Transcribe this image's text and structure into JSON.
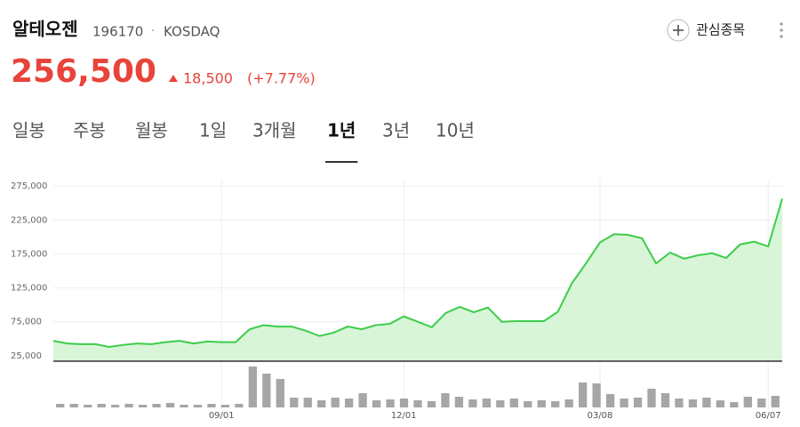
{
  "header": {
    "name": "알테오젠",
    "code": "196170",
    "separator": "·",
    "market": "KOSDAQ",
    "watch": "관심종목"
  },
  "quote": {
    "price": "256,500",
    "change": "18,500",
    "change_pct": "(+7.77%)"
  },
  "tabs": [
    "일봉",
    "주봉",
    "월봉",
    "1일",
    "3개월",
    "1년",
    "3년",
    "10년"
  ],
  "active_tab": 5,
  "chart_data": [
    {
      "type": "area",
      "color": "#3dcc4a",
      "fill": "#d8f5d8",
      "categories": [
        null,
        null,
        null,
        null,
        null,
        null,
        null,
        null,
        null,
        null,
        null,
        null,
        "09/01",
        null,
        null,
        null,
        null,
        null,
        null,
        null,
        null,
        null,
        null,
        null,
        null,
        "12/01",
        null,
        null,
        null,
        null,
        null,
        null,
        null,
        null,
        null,
        null,
        null,
        null,
        null,
        "03/08",
        null,
        null,
        null,
        null,
        null,
        null,
        null,
        null,
        null,
        null,
        null,
        "06/07",
        null
      ],
      "values": [
        47000,
        43000,
        42000,
        42000,
        38000,
        41000,
        43000,
        42000,
        45000,
        47000,
        43000,
        46000,
        45000,
        45000,
        64000,
        70000,
        68000,
        68000,
        62000,
        54000,
        59000,
        68000,
        64000,
        70000,
        72000,
        83000,
        75000,
        67000,
        88000,
        97000,
        89000,
        96000,
        75000,
        76000,
        76000,
        76000,
        90000,
        132000,
        161000,
        192000,
        204000,
        203000,
        198000,
        161000,
        177000,
        168000,
        173000,
        176000,
        169000,
        189000,
        193000,
        186000,
        256500
      ],
      "ylim": [
        17000,
        283000
      ],
      "yticks": [
        {
          "value": 25000,
          "label": "25,000"
        },
        {
          "value": 75000,
          "label": "75,000"
        },
        {
          "value": 125000,
          "label": "125,000"
        },
        {
          "value": 175000,
          "label": "175,000"
        },
        {
          "value": 225000,
          "label": "225,000"
        },
        {
          "value": 275000,
          "label": "275,000"
        }
      ],
      "grid": true
    },
    {
      "type": "bar",
      "color": "#a6a6a6",
      "ylim": [
        0,
        46
      ],
      "values": [
        4,
        4,
        3,
        4,
        3,
        4,
        3,
        4,
        5,
        3,
        3,
        4,
        3,
        4,
        46,
        38,
        32,
        11,
        11,
        8,
        11,
        10,
        16,
        8,
        9,
        10,
        8,
        7,
        16,
        12,
        9,
        10,
        8,
        10,
        7,
        8,
        7,
        9,
        28,
        27,
        15,
        10,
        11,
        21,
        16,
        10,
        9,
        11,
        8,
        6,
        12,
        10,
        13
      ]
    }
  ]
}
